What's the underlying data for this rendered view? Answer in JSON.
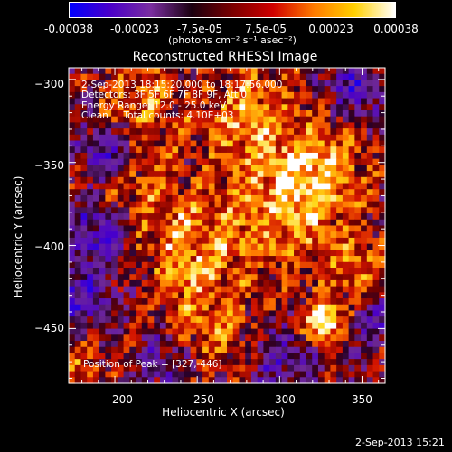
{
  "colorbar": {
    "tick_labels": [
      "-0.00038",
      "-0.00023",
      "-7.5e-05",
      "7.5e-05",
      "0.00023",
      "0.00038"
    ],
    "unit_label": "(photons cm⁻² s⁻¹ asec⁻²)",
    "colors": [
      "#0000ff",
      "#4b00c8",
      "#7a2ea0",
      "#1a0010",
      "#7a0000",
      "#d00000",
      "#ff7a00",
      "#ffd000",
      "#ffffff"
    ]
  },
  "chart_data": {
    "type": "heatmap",
    "title": "Reconstructed RHESSI Image",
    "xlabel": "Heliocentric X (arcsec)",
    "ylabel": "Heliocentric Y (arcsec)",
    "xlim": [
      172,
      364
    ],
    "ylim": [
      -483,
      -293
    ],
    "x_ticks": [
      200,
      250,
      300,
      350
    ],
    "y_ticks": [
      -300,
      -350,
      -400,
      -450
    ],
    "x_tick_labels": [
      "200",
      "250",
      "300",
      "350"
    ],
    "y_tick_labels": [
      "−300",
      "−350",
      "−400",
      "−450"
    ],
    "peak": [
      327,
      -446
    ],
    "annotations": {
      "time_range": "2-Sep-2013 18:15:20.000 to 18:17:56.000",
      "detectors": "Detectors: 3F 5F 6F 7F 8F 9F, Att 0",
      "energy": "Energy Range: 12.0 - 25.0 keV",
      "clean": "Clean     Total counts: 4.10E+03",
      "peak_label": "Position of Peak = [327,-446]"
    }
  },
  "footer": {
    "timestamp": "2-Sep-2013 15:21"
  }
}
